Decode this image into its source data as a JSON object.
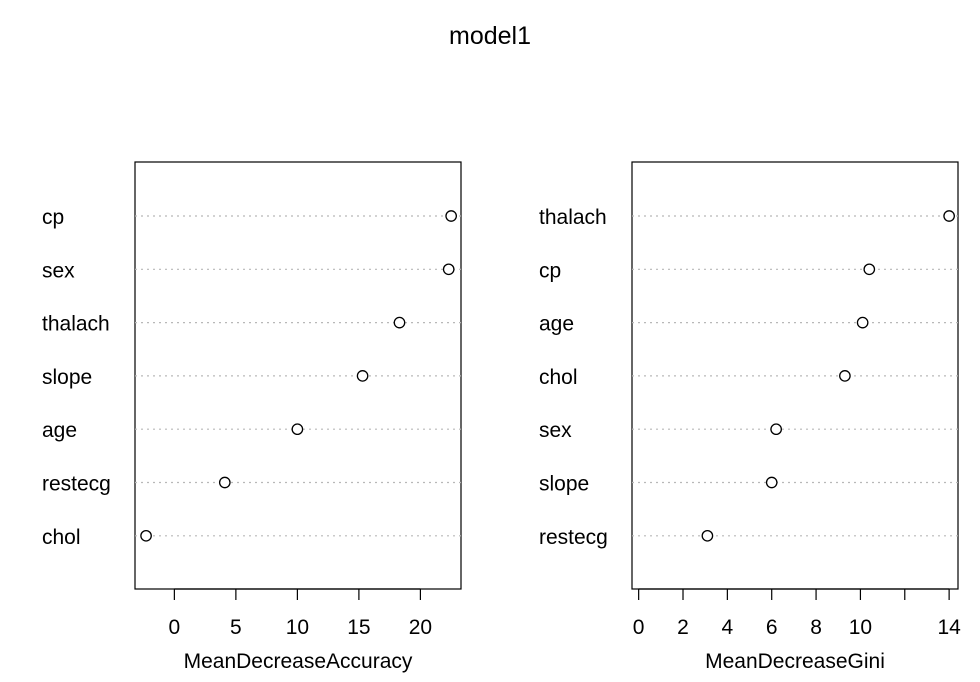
{
  "title": "model1",
  "chart_data": [
    {
      "type": "scatter",
      "subtype": "dotchart",
      "xlabel": "MeanDecreaseAccuracy",
      "ylabel": "",
      "categories": [
        "cp",
        "sex",
        "thalach",
        "slope",
        "age",
        "restecg",
        "chol"
      ],
      "values": [
        22.5,
        22.3,
        18.3,
        15.3,
        10.0,
        4.1,
        -2.3
      ],
      "xlim": [
        -3.2,
        23.3
      ],
      "xticks": [
        0,
        5,
        10,
        15,
        20
      ],
      "grid": "dotted horizontal"
    },
    {
      "type": "scatter",
      "subtype": "dotchart",
      "xlabel": "MeanDecreaseGini",
      "ylabel": "",
      "categories": [
        "thalach",
        "cp",
        "age",
        "chol",
        "sex",
        "slope",
        "restecg"
      ],
      "values": [
        14.0,
        10.4,
        10.1,
        9.3,
        6.2,
        6.0,
        3.1
      ],
      "xlim": [
        -0.3,
        14.4
      ],
      "xticks": [
        0,
        2,
        4,
        6,
        8,
        10,
        12,
        14
      ],
      "xtick_labels": [
        "0",
        "2",
        "4",
        "6",
        "8",
        "10",
        "",
        "14"
      ],
      "grid": "dotted horizontal"
    }
  ]
}
